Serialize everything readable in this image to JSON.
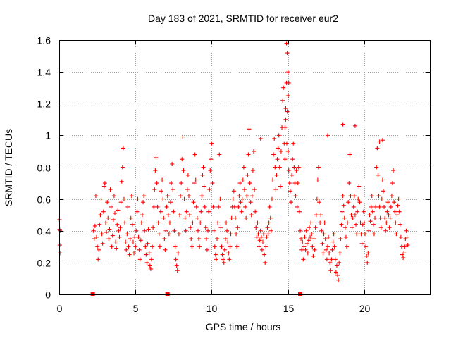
{
  "chart_data": {
    "type": "scatter",
    "title": "Day 183 of 2021, SRMTID for receiver eur2",
    "xlabel": "GPS time / hours",
    "ylabel": "SRMTID / TECUs",
    "xlim": [
      0,
      24.3
    ],
    "ylim": [
      0,
      1.6
    ],
    "x_ticks": [
      0,
      5,
      10,
      15,
      20
    ],
    "x_tick_labels": [
      "0",
      "5",
      "10",
      "15",
      "20"
    ],
    "y_ticks": [
      0,
      0.2,
      0.4,
      0.6,
      0.8,
      1,
      1.2,
      1.4,
      1.6
    ],
    "y_tick_labels": [
      "0",
      "0.2",
      "0.4",
      "0.6",
      "0.8",
      "1",
      "1.2",
      "1.4",
      "1.6"
    ],
    "grid": true,
    "marker": "plus",
    "color": "#ff0000",
    "zero_markers": {
      "marker": "square",
      "x": [
        2.2,
        7.1,
        15.8
      ],
      "y": [
        0,
        0,
        0
      ]
    },
    "series": [
      {
        "name": "SRMTID",
        "x": [
          0.02,
          0.03,
          0.04,
          0.05,
          0.06,
          2.25,
          2.3,
          2.35,
          2.4,
          2.45,
          2.5,
          2.55,
          2.6,
          2.65,
          2.7,
          2.75,
          2.8,
          2.85,
          2.9,
          2.95,
          3.0,
          3.05,
          3.1,
          3.15,
          3.2,
          3.25,
          3.3,
          3.35,
          3.4,
          3.45,
          3.5,
          3.55,
          3.6,
          3.65,
          3.7,
          3.75,
          3.8,
          3.85,
          3.9,
          3.95,
          4.0,
          4.05,
          4.1,
          4.15,
          4.2,
          4.25,
          4.3,
          4.35,
          4.4,
          4.45,
          4.5,
          4.55,
          4.6,
          4.65,
          4.7,
          4.75,
          4.8,
          4.85,
          4.9,
          4.95,
          5.0,
          5.05,
          5.1,
          5.15,
          5.2,
          5.25,
          5.3,
          5.35,
          5.4,
          5.45,
          5.5,
          5.55,
          5.6,
          5.65,
          5.7,
          5.75,
          5.8,
          5.85,
          5.9,
          5.95,
          6.0,
          6.05,
          6.1,
          6.15,
          6.2,
          6.25,
          6.3,
          6.35,
          6.4,
          6.45,
          6.5,
          6.55,
          6.6,
          6.65,
          6.7,
          6.75,
          6.8,
          6.85,
          6.9,
          6.95,
          7.0,
          7.05,
          7.1,
          7.15,
          7.2,
          7.25,
          7.3,
          7.35,
          7.4,
          7.45,
          7.5,
          7.55,
          7.6,
          7.65,
          7.7,
          7.75,
          7.8,
          7.85,
          7.9,
          7.95,
          8.0,
          8.05,
          8.1,
          8.15,
          8.2,
          8.25,
          8.3,
          8.35,
          8.4,
          8.45,
          8.5,
          8.55,
          8.6,
          8.65,
          8.7,
          8.75,
          8.8,
          8.85,
          8.9,
          8.95,
          9.0,
          9.05,
          9.1,
          9.15,
          9.2,
          9.25,
          9.3,
          9.35,
          9.4,
          9.45,
          9.5,
          9.55,
          9.6,
          9.65,
          9.7,
          9.75,
          9.8,
          9.85,
          9.9,
          9.95,
          10.0,
          10.05,
          10.1,
          10.15,
          10.2,
          10.25,
          10.3,
          10.35,
          10.4,
          10.45,
          10.5,
          10.55,
          10.6,
          10.65,
          10.7,
          10.75,
          10.8,
          10.85,
          10.9,
          10.95,
          11.0,
          11.05,
          11.1,
          11.15,
          11.2,
          11.25,
          11.3,
          11.35,
          11.4,
          11.45,
          11.5,
          11.55,
          11.6,
          11.65,
          11.7,
          11.75,
          11.8,
          11.85,
          11.9,
          11.95,
          12.0,
          12.05,
          12.1,
          12.15,
          12.2,
          12.25,
          12.3,
          12.35,
          12.4,
          12.45,
          12.5,
          12.55,
          12.6,
          12.65,
          12.7,
          12.75,
          12.8,
          12.85,
          12.9,
          12.95,
          13.0,
          13.05,
          13.1,
          13.15,
          13.2,
          13.25,
          13.3,
          13.35,
          13.4,
          13.45,
          13.5,
          13.55,
          13.6,
          13.65,
          13.7,
          13.75,
          13.8,
          13.85,
          13.9,
          13.95,
          14.0,
          14.05,
          14.1,
          14.15,
          14.2,
          14.25,
          14.3,
          14.35,
          14.4,
          14.45,
          14.5,
          14.55,
          14.6,
          14.65,
          14.7,
          14.75,
          14.8,
          14.85,
          14.9,
          14.95,
          15.0,
          15.05,
          15.1,
          15.15,
          15.2,
          15.25,
          15.3,
          15.35,
          15.4,
          15.45,
          15.5,
          15.55,
          15.6,
          15.65,
          15.7,
          15.75,
          15.8,
          15.85,
          15.9,
          15.95,
          16.0,
          16.05,
          16.1,
          16.15,
          16.2,
          16.25,
          16.3,
          16.35,
          16.4,
          16.45,
          16.5,
          16.55,
          16.6,
          16.65,
          16.7,
          16.75,
          16.8,
          16.85,
          16.9,
          16.95,
          17.0,
          17.05,
          17.1,
          17.15,
          17.2,
          17.25,
          17.3,
          17.35,
          17.4,
          17.45,
          17.5,
          17.55,
          17.6,
          17.65,
          17.7,
          17.75,
          17.8,
          17.85,
          17.9,
          17.95,
          18.0,
          18.05,
          18.1,
          18.15,
          18.2,
          18.25,
          18.3,
          18.35,
          18.4,
          18.45,
          18.5,
          18.55,
          18.6,
          18.65,
          18.7,
          18.75,
          18.8,
          18.85,
          18.9,
          18.95,
          19.0,
          19.05,
          19.1,
          19.15,
          19.2,
          19.25,
          19.3,
          19.35,
          19.4,
          19.45,
          19.5,
          19.55,
          19.6,
          19.65,
          19.7,
          19.75,
          19.8,
          19.85,
          19.9,
          19.95,
          20.0,
          20.05,
          20.1,
          20.15,
          20.2,
          20.25,
          20.3,
          20.35,
          20.4,
          20.45,
          20.5,
          20.55,
          20.6,
          20.65,
          20.7,
          20.75,
          20.8,
          20.85,
          20.9,
          20.95,
          21.0,
          21.05,
          21.1,
          21.15,
          21.2,
          21.25,
          21.3,
          21.35,
          21.4,
          21.45,
          21.5,
          21.55,
          21.6,
          21.65,
          21.7,
          21.75,
          21.8,
          21.85,
          21.9,
          21.95,
          22.0,
          22.05,
          22.1,
          22.15,
          22.2,
          22.25,
          22.3,
          22.35,
          22.4,
          22.45,
          22.5,
          22.55,
          22.6,
          22.65,
          22.7,
          22.75,
          22.8,
          22.85,
          14.9,
          14.95,
          15.0,
          15.05,
          14.8,
          14.85,
          15.02,
          14.92,
          17.6,
          19.4,
          18.6,
          21.0,
          21.2,
          13.2
        ],
        "y": [
          0.47,
          0.41,
          0.31,
          0.26,
          0.4,
          0.4,
          0.35,
          0.43,
          0.62,
          0.36,
          0.3,
          0.22,
          0.28,
          0.44,
          0.5,
          0.6,
          0.38,
          0.32,
          0.52,
          0.68,
          0.7,
          0.45,
          0.39,
          0.58,
          0.48,
          0.35,
          0.41,
          0.66,
          0.55,
          0.3,
          0.37,
          0.47,
          0.62,
          0.51,
          0.33,
          0.29,
          0.44,
          0.53,
          0.4,
          0.36,
          0.42,
          0.58,
          0.71,
          0.8,
          0.92,
          0.6,
          0.45,
          0.33,
          0.28,
          0.38,
          0.55,
          0.3,
          0.25,
          0.35,
          0.48,
          0.62,
          0.44,
          0.33,
          0.26,
          0.36,
          0.3,
          0.4,
          0.52,
          0.6,
          0.36,
          0.28,
          0.22,
          0.34,
          0.45,
          0.5,
          0.58,
          0.62,
          0.4,
          0.3,
          0.25,
          0.2,
          0.32,
          0.41,
          0.26,
          0.18,
          0.16,
          0.22,
          0.3,
          0.42,
          0.55,
          0.66,
          0.78,
          0.86,
          0.7,
          0.55,
          0.45,
          0.38,
          0.3,
          0.52,
          0.65,
          0.72,
          0.6,
          0.48,
          0.35,
          0.28,
          0.4,
          0.55,
          0.62,
          0.5,
          0.38,
          0.45,
          0.58,
          0.7,
          0.82,
          0.66,
          0.52,
          0.4,
          0.3,
          0.22,
          0.18,
          0.15,
          0.26,
          0.38,
          0.5,
          0.62,
          0.7,
          0.85,
          0.99,
          0.78,
          0.6,
          0.48,
          0.4,
          0.52,
          0.66,
          0.75,
          0.62,
          0.5,
          0.42,
          0.35,
          0.3,
          0.45,
          0.58,
          0.7,
          0.88,
          0.72,
          0.55,
          0.48,
          0.4,
          0.35,
          0.3,
          0.45,
          0.52,
          0.62,
          0.75,
          0.8,
          0.68,
          0.55,
          0.42,
          0.35,
          0.28,
          0.4,
          0.52,
          0.66,
          0.78,
          0.85,
          0.95,
          0.7,
          0.55,
          0.4,
          0.3,
          0.25,
          0.22,
          0.35,
          0.45,
          0.55,
          0.88,
          0.6,
          0.42,
          0.3,
          0.25,
          0.22,
          0.2,
          0.28,
          0.35,
          0.45,
          0.4,
          0.33,
          0.26,
          0.22,
          0.3,
          0.38,
          0.48,
          0.55,
          0.6,
          0.65,
          0.55,
          0.48,
          0.38,
          0.3,
          0.42,
          0.55,
          0.62,
          0.7,
          0.58,
          0.52,
          0.6,
          0.72,
          0.8,
          0.66,
          0.55,
          0.48,
          0.62,
          0.75,
          0.88,
          1.04,
          0.7,
          0.58,
          0.5,
          0.62,
          0.78,
          0.9,
          0.66,
          0.52,
          0.42,
          0.36,
          0.45,
          0.38,
          0.3,
          0.34,
          0.4,
          0.36,
          0.28,
          0.33,
          0.38,
          0.25,
          0.2,
          0.3,
          0.36,
          0.42,
          0.38,
          0.45,
          0.55,
          0.48,
          0.4,
          0.6,
          0.72,
          0.88,
          0.98,
          0.8,
          0.66,
          0.75,
          0.85,
          0.92,
          1.0,
          0.8,
          0.68,
          0.9,
          1.05,
          1.22,
          1.3,
          0.95,
          0.85,
          1.1,
          1.33,
          1.15,
          0.9,
          0.78,
          0.7,
          0.65,
          0.58,
          0.75,
          0.85,
          0.95,
          0.8,
          0.7,
          0.62,
          0.78,
          0.55,
          0.7,
          0.8,
          0.52,
          0.4,
          0.35,
          0.28,
          0.33,
          0.22,
          0.3,
          0.36,
          0.28,
          0.4,
          0.32,
          0.26,
          0.34,
          0.42,
          0.36,
          0.45,
          0.38,
          0.3,
          0.24,
          0.35,
          0.28,
          0.42,
          0.5,
          0.6,
          0.72,
          0.8,
          0.58,
          0.45,
          0.5,
          0.4,
          0.32,
          0.26,
          0.38,
          0.45,
          0.35,
          0.28,
          0.22,
          0.3,
          0.36,
          0.26,
          0.2,
          0.15,
          0.22,
          0.28,
          0.33,
          0.38,
          0.3,
          0.22,
          0.14,
          0.18,
          0.12,
          0.09,
          0.2,
          0.26,
          0.35,
          0.44,
          0.52,
          0.62,
          0.56,
          0.48,
          0.42,
          0.36,
          0.3,
          0.45,
          0.58,
          0.7,
          0.88,
          0.62,
          0.5,
          0.42,
          0.48,
          0.55,
          0.62,
          0.5,
          0.44,
          0.38,
          0.52,
          0.6,
          0.68,
          0.58,
          0.45,
          0.38,
          0.32,
          0.44,
          0.52,
          0.45,
          0.38,
          0.3,
          0.24,
          0.2,
          0.26,
          0.4,
          0.5,
          0.46,
          0.55,
          0.62,
          0.52,
          0.44,
          0.38,
          0.48,
          0.55,
          0.8,
          0.92,
          0.75,
          0.62,
          0.55,
          0.48,
          0.42,
          0.6,
          0.72,
          0.65,
          0.55,
          0.48,
          0.4,
          0.45,
          0.52,
          0.58,
          0.5,
          0.42,
          0.48,
          0.55,
          0.62,
          0.7,
          0.78,
          0.58,
          0.52,
          0.45,
          0.38,
          0.5,
          0.56,
          0.6,
          0.52,
          0.44,
          0.36,
          0.3,
          0.25,
          0.23,
          0.26,
          0.3,
          0.35,
          0.4,
          0.36,
          0.31,
          1.58,
          1.52,
          1.4,
          1.33,
          1.05,
          1.17,
          1.25,
          0.95,
          1.0,
          1.06,
          1.07,
          0.96,
          0.97,
          0.98
        ]
      }
    ]
  }
}
